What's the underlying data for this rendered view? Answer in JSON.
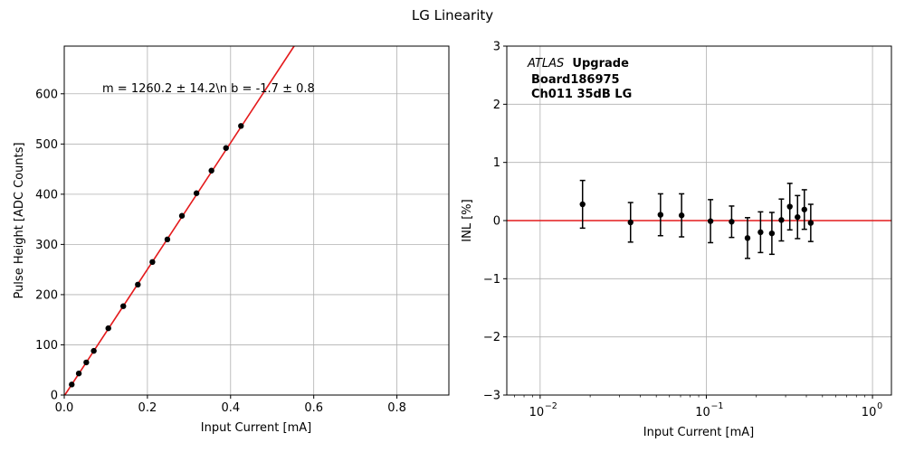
{
  "figure_title": "LG Linearity",
  "chart_data": [
    {
      "type": "scatter",
      "xlabel": "Input Current [mA]",
      "ylabel": "Pulse Height [ADC Counts]",
      "xlim": [
        0,
        0.925
      ],
      "ylim": [
        0,
        695
      ],
      "xticks": [
        0.0,
        0.2,
        0.4,
        0.6,
        0.8
      ],
      "xtick_labels": [
        "0.0",
        "0.2",
        "0.4",
        "0.6",
        "0.8"
      ],
      "yticks": [
        0,
        100,
        200,
        300,
        400,
        500,
        600
      ],
      "ytick_labels": [
        "0",
        "100",
        "200",
        "300",
        "400",
        "500",
        "600"
      ],
      "grid": true,
      "annotation": "m = 1260.2 ± 14.2\\n b = -1.7 ± 0.8",
      "fit": {
        "slope": 1260.2,
        "intercept": -1.7,
        "color": "#e41a1c"
      },
      "series": [
        {
          "x": [
            0.018,
            0.035,
            0.053,
            0.071,
            0.106,
            0.142,
            0.177,
            0.212,
            0.248,
            0.283,
            0.318,
            0.354,
            0.389,
            0.425
          ],
          "y": [
            21,
            43,
            65,
            88,
            133,
            177,
            220,
            265,
            310,
            357,
            402,
            447,
            492,
            536
          ],
          "color": "#000000"
        }
      ]
    },
    {
      "type": "scatter",
      "xlabel": "Input Current [mA]",
      "ylabel": "INL [%]",
      "xscale": "log",
      "xlim": [
        0.0063,
        1.3
      ],
      "ylim": [
        -3,
        3
      ],
      "xticks": [
        0.01,
        0.1,
        1
      ],
      "xtick_labels": [
        "10",
        "10",
        "10"
      ],
      "xtick_exponents": [
        "−2",
        "−1",
        "0"
      ],
      "yticks": [
        -3,
        -2,
        -1,
        0,
        1,
        2,
        3
      ],
      "ytick_labels": [
        "−3",
        "−2",
        "−1",
        "0",
        "1",
        "2",
        "3"
      ],
      "grid": true,
      "reference_line": {
        "y": 0,
        "color": "#e41a1c"
      },
      "legend_text": {
        "italic": "ATLAS",
        "bold1": "Upgrade",
        "line2": "Board186975",
        "line3": "Ch011 35dB LG"
      },
      "series": [
        {
          "x": [
            0.018,
            0.035,
            0.053,
            0.071,
            0.106,
            0.142,
            0.177,
            0.212,
            0.248,
            0.283,
            0.318,
            0.354,
            0.389,
            0.425
          ],
          "y": [
            0.28,
            -0.03,
            0.1,
            0.09,
            -0.01,
            -0.02,
            -0.3,
            -0.2,
            -0.22,
            0.01,
            0.24,
            0.06,
            0.19,
            -0.04
          ],
          "err": [
            0.41,
            0.34,
            0.36,
            0.37,
            0.37,
            0.27,
            0.35,
            0.35,
            0.36,
            0.36,
            0.4,
            0.37,
            0.34,
            0.32
          ],
          "color": "#000000"
        }
      ]
    }
  ]
}
